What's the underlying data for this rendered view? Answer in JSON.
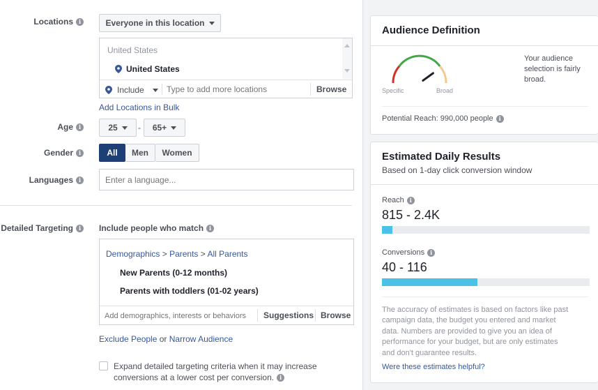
{
  "locations": {
    "label": "Locations",
    "dropdown": "Everyone in this location",
    "list_header": "United States",
    "selected": "United States",
    "include": "Include",
    "placeholder": "Type to add more locations",
    "browse": "Browse",
    "bulk_link": "Add Locations in Bulk"
  },
  "age": {
    "label": "Age",
    "min": "25",
    "max": "65+",
    "separator": "-"
  },
  "gender": {
    "label": "Gender",
    "options": [
      "All",
      "Men",
      "Women"
    ]
  },
  "languages": {
    "label": "Languages",
    "placeholder": "Enter a language..."
  },
  "detailed": {
    "label": "Detailed Targeting",
    "include_label": "Include people who match",
    "crumb": {
      "a": "Demographics",
      "sep1": ">",
      "b": "Parents",
      "sep2": ">",
      "c": "All Parents"
    },
    "items": [
      "New Parents (0-12 months)",
      "Parents with toddlers (01-02 years)"
    ],
    "placeholder": "Add demographics, interests or behaviors",
    "suggestions": "Suggestions",
    "browse": "Browse",
    "exclude_link": "Exclude People",
    "or": "or",
    "narrow_link": "Narrow Audience",
    "expand_text": "Expand detailed targeting criteria when it may increase conversions at a lower cost per conversion."
  },
  "audience": {
    "title": "Audience Definition",
    "specific": "Specific",
    "broad": "Broad",
    "description": "Your audience selection is fairly broad.",
    "reach": "Potential Reach: 990,000 people",
    "gauge_level": 0.8
  },
  "estimated": {
    "title": "Estimated Daily Results",
    "subtitle": "Based on 1-day click conversion window",
    "reach_label": "Reach",
    "reach_value": "815 - 2.4K",
    "reach_fill": 0.05,
    "conv_label": "Conversions",
    "conv_value": "40 - 116",
    "conv_fill": 0.46,
    "disclaimer": "The accuracy of estimates is based on factors like past campaign data, the budget you entered and market data. Numbers are provided to give you an idea of performance for your budget, but are only estimates and don't guarantee results.",
    "helpful_link": "Were these estimates helpful?"
  },
  "colors": {
    "accent": "#4cc1e8",
    "link": "#365899",
    "selected": "#1d3f75"
  }
}
